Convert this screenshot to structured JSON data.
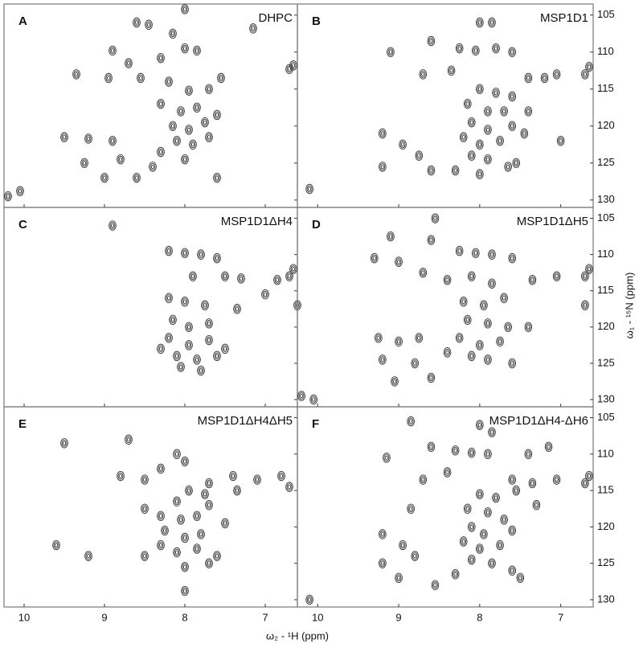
{
  "x_label": "ω₂ - ¹H (ppm)",
  "y_label": "ω₁ - ¹⁵N (ppm)",
  "chart_data": [
    {
      "type": "scatter",
      "label": "A",
      "title": "DHPC",
      "xlim": [
        10.25,
        6.6
      ],
      "ylim": [
        103.5,
        131
      ],
      "xticks": [
        10,
        9,
        8,
        7
      ],
      "yticks": [
        105,
        110,
        115,
        120,
        125,
        130
      ],
      "x": [
        8.0,
        8.6,
        8.45,
        8.15,
        8.0,
        7.85,
        7.15,
        6.65,
        6.7,
        8.9,
        8.7,
        8.3,
        9.35,
        8.95,
        8.55,
        8.2,
        7.95,
        7.7,
        7.55,
        8.3,
        8.05,
        7.85,
        7.6,
        8.15,
        7.95,
        7.75,
        8.1,
        7.9,
        7.7,
        8.3,
        8.0,
        9.5,
        9.2,
        8.9,
        9.25,
        8.8,
        9.0,
        8.6,
        10.2,
        10.05,
        7.6,
        8.4
      ],
      "y": [
        104.2,
        106,
        106.3,
        107.5,
        109.5,
        109.8,
        106.8,
        111.8,
        112.3,
        109.8,
        111.5,
        110.8,
        113,
        113.5,
        113.5,
        114,
        115.2,
        115,
        113.5,
        117,
        118,
        117.5,
        118.5,
        120,
        120.5,
        119.5,
        122,
        122.5,
        121.5,
        123.5,
        124.5,
        121.5,
        121.7,
        122,
        125,
        124.5,
        127,
        127,
        129.5,
        128.8,
        127,
        125.5
      ]
    },
    {
      "type": "scatter",
      "label": "B",
      "title": "MSP1D1",
      "xlim": [
        10.25,
        6.6
      ],
      "ylim": [
        103.5,
        131
      ],
      "xticks": [
        10,
        9,
        8,
        7
      ],
      "yticks": [
        105,
        110,
        115,
        120,
        125,
        130
      ],
      "x": [
        8.0,
        7.85,
        8.25,
        8.05,
        7.8,
        7.6,
        9.1,
        8.6,
        8.35,
        8.7,
        6.7,
        6.65,
        7.2,
        7.4,
        7.05,
        8.0,
        7.8,
        7.6,
        8.15,
        7.9,
        7.7,
        8.1,
        7.9,
        7.6,
        8.2,
        8.0,
        7.75,
        8.1,
        7.9,
        7.55,
        7.65,
        8.3,
        8.0,
        9.2,
        8.95,
        8.75,
        8.6,
        9.2,
        10.1,
        7.0,
        7.4,
        7.45
      ],
      "y": [
        106,
        106,
        109.5,
        109.8,
        109.5,
        110,
        110,
        108.5,
        112.5,
        113,
        113,
        112,
        113.5,
        113.5,
        113,
        115,
        115.5,
        116,
        117,
        118,
        118,
        119.5,
        120.5,
        120,
        121.5,
        122.5,
        122,
        124,
        124.5,
        125,
        125.5,
        126,
        126.5,
        121,
        122.5,
        124,
        126,
        125.5,
        128.5,
        122,
        118,
        121
      ]
    },
    {
      "type": "scatter",
      "label": "C",
      "title": "MSP1D1ΔH4",
      "xlim": [
        10.25,
        6.6
      ],
      "ylim": [
        103.5,
        131
      ],
      "xticks": [
        10,
        9,
        8,
        7
      ],
      "yticks": [
        105,
        110,
        115,
        120,
        125,
        130
      ],
      "x": [
        8.2,
        8.0,
        7.8,
        7.6,
        7.9,
        7.5,
        7.3,
        6.7,
        6.85,
        6.65,
        8.2,
        8.0,
        7.75,
        8.15,
        7.95,
        7.7,
        8.2,
        7.95,
        7.7,
        8.1,
        7.85,
        7.6,
        8.05,
        7.8,
        7.5,
        8.9,
        6.6,
        8.3,
        7.0,
        7.35
      ],
      "y": [
        109.5,
        109.8,
        110,
        110.5,
        113,
        113,
        113.3,
        113,
        113.5,
        112,
        116,
        116.5,
        117,
        119,
        120,
        119.5,
        121.5,
        122.5,
        121.8,
        124,
        124.5,
        124,
        125.5,
        126,
        123,
        106,
        117,
        123,
        115.5,
        117.5
      ]
    },
    {
      "type": "scatter",
      "label": "D",
      "title": "MSP1D1ΔH5",
      "xlim": [
        10.25,
        6.6
      ],
      "ylim": [
        103.5,
        131
      ],
      "xticks": [
        10,
        9,
        8,
        7
      ],
      "yticks": [
        105,
        110,
        115,
        120,
        125,
        130
      ],
      "x": [
        8.55,
        8.6,
        9.1,
        8.25,
        8.05,
        7.85,
        7.6,
        9.3,
        9.0,
        8.7,
        8.4,
        8.1,
        7.85,
        7.35,
        7.05,
        6.7,
        6.65,
        8.2,
        7.95,
        7.7,
        8.15,
        7.9,
        7.65,
        8.25,
        8.0,
        7.75,
        8.1,
        7.9,
        7.6,
        9.25,
        9.0,
        8.75,
        9.2,
        8.8,
        8.6,
        9.05,
        10.05,
        8.4,
        6.7,
        7.4,
        10.2
      ],
      "y": [
        105,
        108,
        107.5,
        109.5,
        109.8,
        110,
        110.5,
        110.5,
        111,
        112.5,
        113.5,
        113,
        114,
        113.5,
        113,
        113,
        112,
        116.5,
        117,
        116,
        119,
        119.5,
        120,
        121.5,
        122.5,
        122,
        124,
        124.5,
        125,
        121.5,
        122,
        121.5,
        124.5,
        125,
        127,
        127.5,
        130,
        123.5,
        117,
        120,
        129.5
      ]
    },
    {
      "type": "scatter",
      "label": "E",
      "title": "MSP1D1ΔH4ΔH5",
      "xlim": [
        10.25,
        6.6
      ],
      "ylim": [
        103.5,
        131
      ],
      "xticks": [
        10,
        9,
        8,
        7
      ],
      "yticks": [
        105,
        110,
        115,
        120,
        125,
        130
      ],
      "x": [
        8.1,
        8.0,
        8.3,
        8.8,
        8.5,
        7.7,
        7.4,
        7.35,
        6.8,
        6.7,
        7.1,
        7.95,
        7.75,
        8.1,
        7.7,
        8.5,
        8.3,
        8.05,
        7.85,
        8.25,
        8.0,
        7.8,
        8.3,
        8.1,
        7.85,
        8.0,
        7.7,
        7.6,
        8.5,
        8.0,
        9.6,
        9.2,
        7.5,
        8.7,
        9.5
      ],
      "y": [
        110,
        111,
        112,
        113,
        113.5,
        114,
        113,
        115,
        113,
        114.5,
        113.5,
        115,
        115.5,
        116.5,
        117,
        117.5,
        118.5,
        119,
        118.5,
        120.5,
        121.5,
        121,
        122.5,
        123.5,
        123,
        125.5,
        125,
        124,
        124,
        128.8,
        122.5,
        124,
        119.5,
        108,
        108.5
      ]
    },
    {
      "type": "scatter",
      "label": "F",
      "title": "MSP1D1ΔH4-ΔH6",
      "xlim": [
        10.25,
        6.6
      ],
      "ylim": [
        103.5,
        131
      ],
      "xticks": [
        10,
        9,
        8,
        7
      ],
      "yticks": [
        105,
        110,
        115,
        120,
        125,
        130
      ],
      "x": [
        8.85,
        8.0,
        7.85,
        8.6,
        8.3,
        8.1,
        7.9,
        7.4,
        7.15,
        9.15,
        8.4,
        8.7,
        7.6,
        7.35,
        7.05,
        6.7,
        6.65,
        8.0,
        7.8,
        7.55,
        8.15,
        7.9,
        7.7,
        8.1,
        7.95,
        7.6,
        8.2,
        8.0,
        7.75,
        8.1,
        7.85,
        7.6,
        7.5,
        8.3,
        8.55,
        9.2,
        8.95,
        9.2,
        8.8,
        9.0,
        10.1,
        8.85,
        7.3
      ],
      "y": [
        105.5,
        106,
        107,
        109,
        109.5,
        109.8,
        110,
        110,
        109,
        110.5,
        112.5,
        113.5,
        113.5,
        114,
        113.5,
        114,
        113,
        115.5,
        116,
        115,
        117.5,
        118,
        119,
        120,
        121,
        120.5,
        122,
        123,
        122.5,
        124.5,
        125,
        126,
        127,
        126.5,
        128,
        121,
        122.5,
        125,
        124,
        127,
        130,
        117.5,
        117
      ]
    }
  ]
}
